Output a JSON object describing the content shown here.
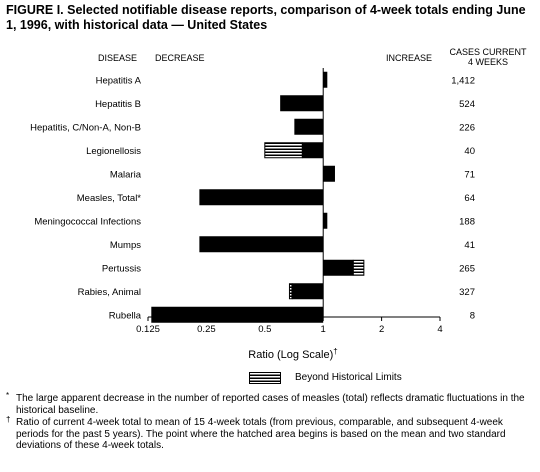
{
  "title": "FIGURE I. Selected notifiable disease reports, comparison of 4-week totals ending June 1, 1996, with historical data — United States",
  "headers": {
    "disease": "DISEASE",
    "decrease": "DECREASE",
    "increase": "INCREASE",
    "cases_line1": "CASES CURRENT",
    "cases_line2": "4 WEEKS"
  },
  "legend": {
    "label": "Beyond Historical Limits"
  },
  "footnotes": [
    {
      "mark": "*",
      "text": "The large apparent decrease in the number of reported cases of measles (total) reflects dramatic fluctuations in the historical baseline."
    },
    {
      "mark": "†",
      "text": "Ratio of current 4-week total to mean of 15 4-week totals (from previous, comparable, and subsequent 4-week periods for the past 5 years). The point where the hatched area begins is based on the mean and two standard deviations of these 4-week totals."
    }
  ],
  "chart_data": {
    "type": "bar",
    "orientation": "horizontal",
    "x_scale": "log2",
    "xlabel": "Ratio (Log Scale)",
    "xlabel_mark": "†",
    "xlim": [
      0.125,
      4
    ],
    "x_ticks": [
      0.125,
      0.25,
      0.5,
      1,
      2,
      4
    ],
    "x_tick_labels": [
      "0.125",
      "0.25",
      "0.5",
      "1",
      "2",
      "4"
    ],
    "baseline": 1,
    "categories": [
      "Hepatitis A",
      "Hepatitis B",
      "Hepatitis, C/Non-A, Non-B",
      "Legionellosis",
      "Malaria",
      "Measles, Total*",
      "Meningococcal Infections",
      "Mumps",
      "Pertussis",
      "Rabies, Animal",
      "Rubella"
    ],
    "values": [
      1.05,
      0.6,
      0.71,
      0.5,
      1.15,
      0.23,
      1.05,
      0.23,
      1.62,
      0.67,
      0.13
    ],
    "beyond_limit_from": [
      null,
      null,
      null,
      0.78,
      null,
      null,
      null,
      null,
      1.43,
      0.69,
      null
    ],
    "cases": [
      "1,412",
      "524",
      "226",
      "40",
      "71",
      "64",
      "188",
      "41",
      "265",
      "327",
      "8"
    ]
  }
}
